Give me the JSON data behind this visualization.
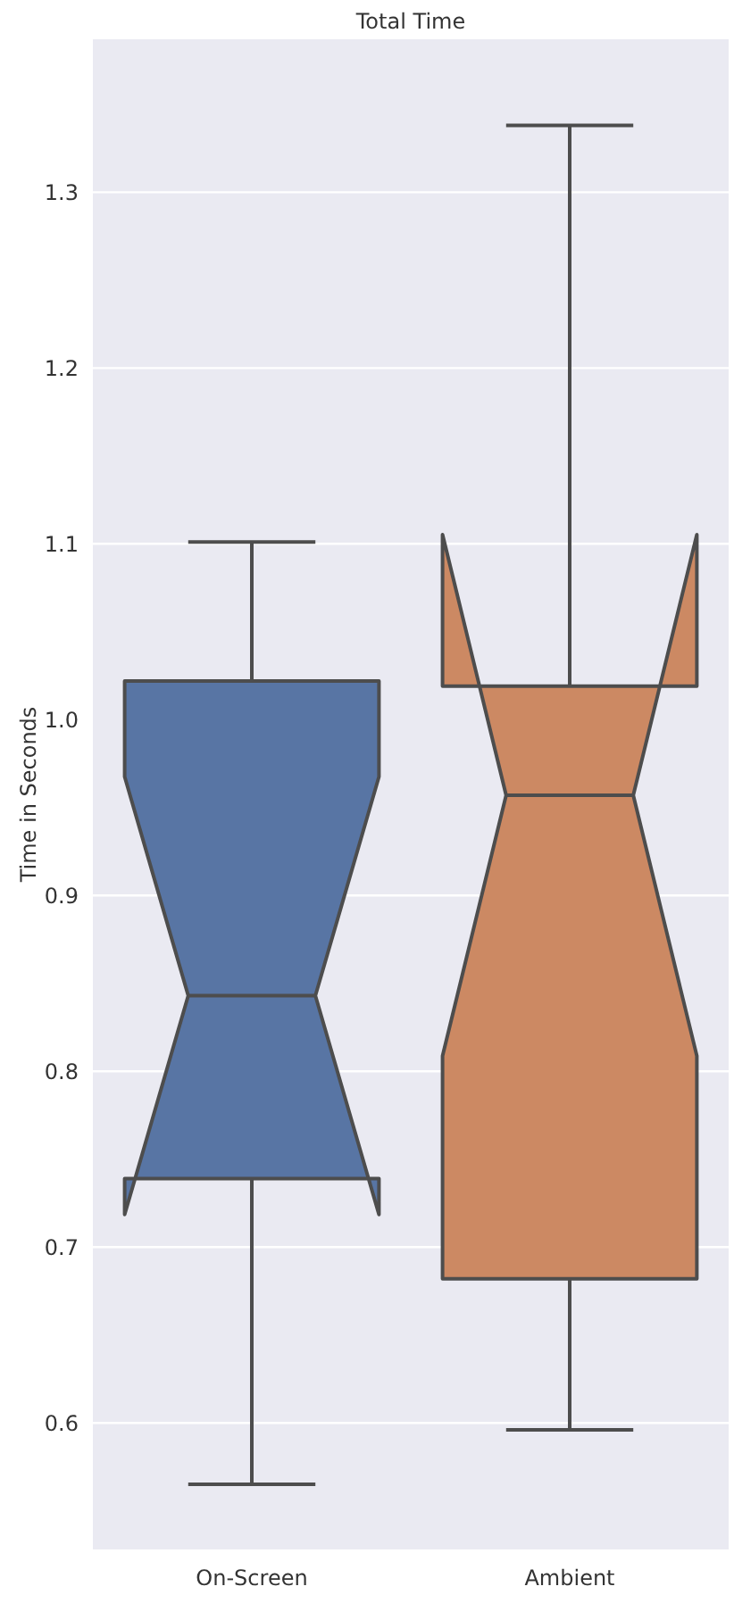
{
  "chart_data": {
    "type": "box",
    "title": "Total Time",
    "ylabel": "Time in Seconds",
    "categories": [
      "On-Screen",
      "Ambient"
    ],
    "colors": [
      "#5875a4",
      "#cc8963"
    ],
    "boxes": [
      {
        "low": 0.565,
        "q1": 0.739,
        "median": 0.843,
        "q3": 1.022,
        "high": 1.101
      },
      {
        "low": 0.596,
        "q1": 0.682,
        "median": 0.957,
        "q3": 1.019,
        "high": 1.338
      }
    ],
    "ylim": [
      0.528,
      1.387
    ],
    "yticks": [
      0.6,
      0.7,
      0.8,
      0.9,
      {
        "value": 1,
        "label": "1.0"
      },
      1.1,
      1.2,
      1.3
    ],
    "grid": "y"
  }
}
